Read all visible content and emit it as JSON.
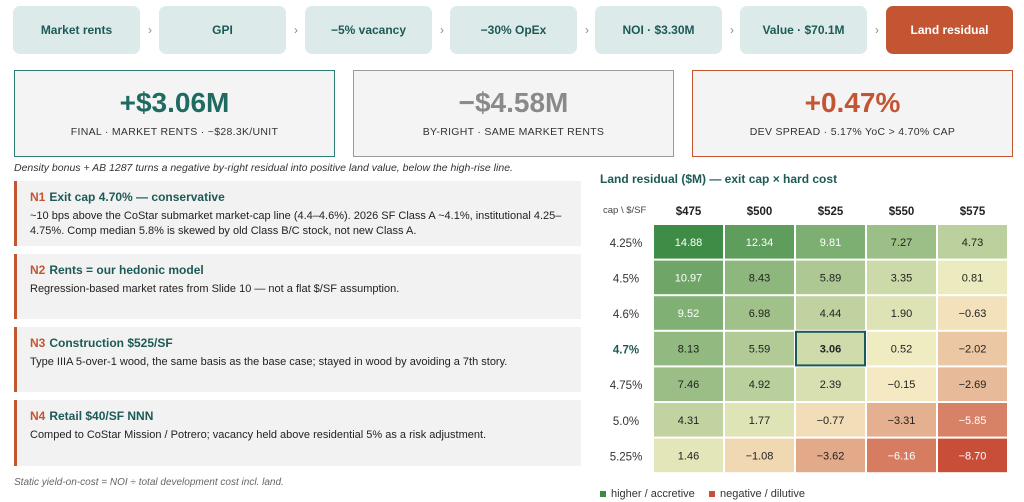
{
  "flow": {
    "steps": [
      "Market rents",
      "GPI",
      "−5% vacancy",
      "−30% OpEx",
      "NOI · $3.30M",
      "Value · $70.1M",
      "Land residual"
    ],
    "separator": "›"
  },
  "kpis": [
    {
      "value": "+$3.06M",
      "label": "FINAL · MARKET RENTS · ~$28.3K/UNIT"
    },
    {
      "value": "−$4.58M",
      "label": "BY-RIGHT · SAME MARKET RENTS"
    },
    {
      "value": "+0.47%",
      "label": "DEV SPREAD · 5.17% YoC > 4.70% CAP"
    }
  ],
  "subtitle": "Density bonus + AB 1287 turns a negative by-right residual into positive land value, below the high-rise line.",
  "notes": [
    {
      "num": "N1",
      "title": "Exit cap 4.70% — conservative",
      "body": "~10 bps above the CoStar submarket market-cap line (4.4–4.6%). 2026 SF Class A ~4.1%, institutional 4.25–4.75%. Comp median 5.8% is skewed by old Class B/C stock, not new Class A."
    },
    {
      "num": "N2",
      "title": "Rents = our hedonic model",
      "body": "Regression-based market rates from Slide 10 — not a flat $/SF assumption."
    },
    {
      "num": "N3",
      "title": "Construction $525/SF",
      "body": "Type IIIA 5-over-1 wood, the same basis as the base case; stayed in wood by avoiding a 7th story."
    },
    {
      "num": "N4",
      "title": "Retail $40/SF NNN",
      "body": "Comped to CoStar Mission / Potrero; vacancy held above residential 5% as a risk adjustment."
    }
  ],
  "footnote": "Static yield-on-cost = NOI ÷ total development cost incl. land.",
  "legend": {
    "positive": "higher / accretive",
    "negative": "negative / dilutive"
  },
  "colors": {
    "accent": "#c45532",
    "teal": "#1d5a56",
    "pos": "#3d8a45",
    "neg": "#c94e38",
    "neutral": "#f7f1c8"
  },
  "chart_data": {
    "type": "heatmap",
    "title": "Land residual ($M) — exit cap × hard cost",
    "corner_label": "cap \\ $/SF",
    "x": [
      "$475",
      "$500",
      "$525",
      "$550",
      "$575"
    ],
    "y": [
      "4.25%",
      "4.5%",
      "4.6%",
      "4.7%",
      "4.75%",
      "5.0%",
      "5.25%"
    ],
    "highlight_row": "4.7%",
    "highlight_cell": {
      "row": "4.7%",
      "col": "$525"
    },
    "values": [
      [
        14.88,
        12.34,
        9.81,
        7.27,
        4.73
      ],
      [
        10.97,
        8.43,
        5.89,
        3.35,
        0.81
      ],
      [
        9.52,
        6.98,
        4.44,
        1.9,
        -0.63
      ],
      [
        8.13,
        5.59,
        3.06,
        0.52,
        -2.02
      ],
      [
        7.46,
        4.92,
        2.39,
        -0.15,
        -2.69
      ],
      [
        4.31,
        1.77,
        -0.77,
        -3.31,
        -5.85
      ],
      [
        1.46,
        -1.08,
        -3.62,
        -6.16,
        -8.7
      ]
    ]
  }
}
